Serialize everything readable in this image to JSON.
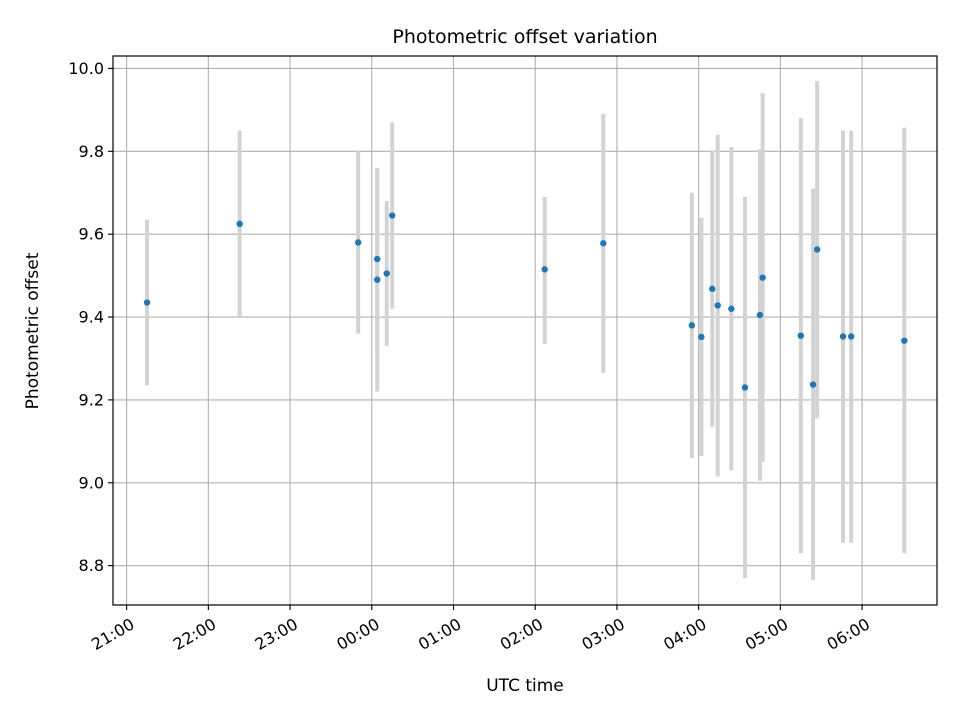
{
  "chart_data": {
    "type": "scatter",
    "title": "Photometric offset variation",
    "xlabel": "UTC time",
    "ylabel": "Photometric offset",
    "x_axis_kind": "time",
    "x_ticks": [
      "21:00",
      "22:00",
      "23:00",
      "00:00",
      "01:00",
      "02:00",
      "03:00",
      "04:00",
      "05:00",
      "06:00"
    ],
    "x_tick_rotation_deg": 30,
    "y_ticks": [
      "8.8",
      "9.0",
      "9.2",
      "9.4",
      "9.6",
      "9.8",
      "10.0"
    ],
    "xlim": [
      "20:50",
      "06:55"
    ],
    "ylim": [
      8.705,
      10.03
    ],
    "grid": true,
    "point_color": "#1f77b4",
    "errorbar_color": "#d3d3d3",
    "points": [
      {
        "time": "21:15",
        "y": 9.435,
        "low": 9.235,
        "high": 9.635
      },
      {
        "time": "22:23",
        "y": 9.625,
        "low": 9.4,
        "high": 9.85
      },
      {
        "time": "23:50",
        "y": 9.58,
        "low": 9.36,
        "high": 9.8
      },
      {
        "time": "00:04",
        "y": 9.54,
        "low": 9.32,
        "high": 9.76
      },
      {
        "time": "00:04",
        "y": 9.49,
        "low": 9.22,
        "high": 9.76
      },
      {
        "time": "00:11",
        "y": 9.505,
        "low": 9.33,
        "high": 9.68
      },
      {
        "time": "00:15",
        "y": 9.645,
        "low": 9.42,
        "high": 9.87
      },
      {
        "time": "02:07",
        "y": 9.515,
        "low": 9.335,
        "high": 9.69
      },
      {
        "time": "02:50",
        "y": 9.578,
        "low": 9.265,
        "high": 9.89
      },
      {
        "time": "03:55",
        "y": 9.38,
        "low": 9.06,
        "high": 9.7
      },
      {
        "time": "04:02",
        "y": 9.352,
        "low": 9.065,
        "high": 9.64
      },
      {
        "time": "04:10",
        "y": 9.468,
        "low": 9.135,
        "high": 9.8
      },
      {
        "time": "04:14",
        "y": 9.428,
        "low": 9.015,
        "high": 9.84
      },
      {
        "time": "04:24",
        "y": 9.42,
        "low": 9.03,
        "high": 9.81
      },
      {
        "time": "04:34",
        "y": 9.23,
        "low": 8.77,
        "high": 9.69
      },
      {
        "time": "04:45",
        "y": 9.405,
        "low": 9.005,
        "high": 9.805
      },
      {
        "time": "04:47",
        "y": 9.495,
        "low": 9.05,
        "high": 9.94
      },
      {
        "time": "05:15",
        "y": 9.355,
        "low": 8.83,
        "high": 9.88
      },
      {
        "time": "05:24",
        "y": 9.237,
        "low": 8.765,
        "high": 9.71
      },
      {
        "time": "05:27",
        "y": 9.563,
        "low": 9.155,
        "high": 9.97
      },
      {
        "time": "05:46",
        "y": 9.353,
        "low": 8.855,
        "high": 9.85
      },
      {
        "time": "05:52",
        "y": 9.353,
        "low": 8.855,
        "high": 9.85
      },
      {
        "time": "06:31",
        "y": 9.343,
        "low": 8.83,
        "high": 9.857
      }
    ]
  }
}
